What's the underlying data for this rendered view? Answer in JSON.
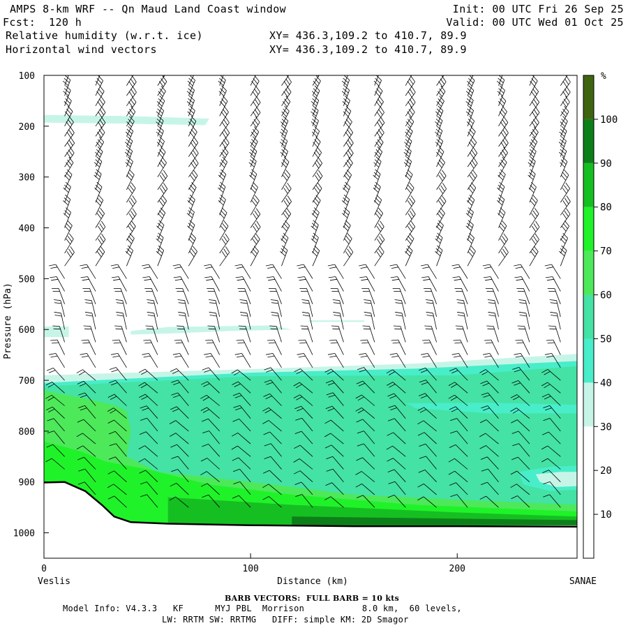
{
  "header": {
    "title": "AMPS 8-km WRF -- Qn Maud Land Coast window",
    "fcst": "Fcst:  120 h",
    "init": "Init: 00 UTC Fri 26 Sep 25",
    "valid": "Valid: 00 UTC Wed 01 Oct 25",
    "field1": "Relative humidity (w.r.t. ice)",
    "field1_xy": "XY= 436.3,109.2 to 410.7, 89.9",
    "field2": "Horizontal wind vectors",
    "field2_xy": "XY= 436.3,109.2 to 410.7, 89.9"
  },
  "footer": {
    "barb_note": "BARB VECTORS:  FULL BARB = 10 kts",
    "model_info_1": "Model Info: V4.3.3   KF      MYJ PBL  Morrison           8.0 km,  60 levels,",
    "model_info_2": "LW: RRTM SW: RRTMG   DIFF: simple KM: 2D Smagor"
  },
  "chart_data": {
    "type": "cross-section",
    "xlabel": "Distance (km)",
    "ylabel": "Pressure (hPa)",
    "x_start_label": "Veslis",
    "x_end_label": "SANAE",
    "x_ticks": [
      0,
      100,
      200
    ],
    "xlim": [
      0,
      258
    ],
    "y_ticks": [
      100,
      200,
      300,
      400,
      500,
      600,
      700,
      800,
      900,
      1000
    ],
    "ylim": [
      100,
      1050
    ],
    "y_scale": "linear-inverted",
    "colorbar": {
      "unit": "%",
      "ticks": [
        10,
        20,
        30,
        40,
        50,
        60,
        70,
        80,
        90,
        100
      ],
      "bins": [
        {
          "from": 0,
          "to": 30,
          "color": "#ffffff"
        },
        {
          "from": 30,
          "to": 40,
          "color": "#c6f5e8"
        },
        {
          "from": 40,
          "to": 50,
          "color": "#48edc9"
        },
        {
          "from": 50,
          "to": 60,
          "color": "#44e2a4"
        },
        {
          "from": 60,
          "to": 70,
          "color": "#4de95a"
        },
        {
          "from": 70,
          "to": 80,
          "color": "#20f22a"
        },
        {
          "from": 80,
          "to": 90,
          "color": "#15bf21"
        },
        {
          "from": 90,
          "to": 100,
          "color": "#0d7f19"
        },
        {
          "from": 100,
          "to": 110,
          "color": "#3f6410"
        }
      ]
    },
    "terrain_surface": [
      {
        "x": 0,
        "p": 901
      },
      {
        "x": 10,
        "p": 900
      },
      {
        "x": 20,
        "p": 918
      },
      {
        "x": 28,
        "p": 945
      },
      {
        "x": 34,
        "p": 968
      },
      {
        "x": 42,
        "p": 979
      },
      {
        "x": 60,
        "p": 982
      },
      {
        "x": 100,
        "p": 985
      },
      {
        "x": 150,
        "p": 987
      },
      {
        "x": 200,
        "p": 987
      },
      {
        "x": 258,
        "p": 988
      }
    ],
    "rh_regions": [
      {
        "rh": 30,
        "points": [
          [
            0,
            178
          ],
          [
            40,
            180
          ],
          [
            80,
            185
          ],
          [
            78,
            198
          ],
          [
            40,
            195
          ],
          [
            0,
            193
          ]
        ]
      },
      {
        "rh": 30,
        "points": [
          [
            0,
            594
          ],
          [
            12,
            594
          ],
          [
            12,
            615
          ],
          [
            0,
            615
          ]
        ]
      },
      {
        "rh": 30,
        "points": [
          [
            42,
            603
          ],
          [
            60,
            595
          ],
          [
            110,
            592
          ],
          [
            120,
            600
          ],
          [
            90,
            603
          ],
          [
            60,
            608
          ],
          [
            42,
            610
          ]
        ]
      },
      {
        "rh": 30,
        "points": [
          [
            128,
            582
          ],
          [
            155,
            582
          ],
          [
            155,
            585
          ],
          [
            128,
            585
          ]
        ]
      },
      {
        "rh": 30,
        "points": [
          [
            0,
            690
          ],
          [
            100,
            678
          ],
          [
            180,
            667
          ],
          [
            258,
            648
          ],
          [
            258,
            985
          ],
          [
            0,
            985
          ]
        ]
      },
      {
        "rh": 40,
        "points": [
          [
            0,
            705
          ],
          [
            100,
            685
          ],
          [
            180,
            677
          ],
          [
            258,
            662
          ],
          [
            258,
            985
          ],
          [
            0,
            985
          ]
        ]
      },
      {
        "rh": 50,
        "points": [
          [
            0,
            712
          ],
          [
            100,
            692
          ],
          [
            200,
            690
          ],
          [
            258,
            672
          ],
          [
            258,
            985
          ],
          [
            0,
            985
          ]
        ]
      },
      {
        "rh": 60,
        "points": [
          [
            0,
            720
          ],
          [
            25,
            740
          ],
          [
            35,
            750
          ],
          [
            40,
            760
          ],
          [
            42,
            800
          ],
          [
            40,
            850
          ],
          [
            55,
            880
          ],
          [
            100,
            900
          ],
          [
            150,
            925
          ],
          [
            200,
            935
          ],
          [
            258,
            945
          ],
          [
            258,
            985
          ],
          [
            0,
            985
          ]
        ]
      },
      {
        "rh": 70,
        "points": [
          [
            0,
            820
          ],
          [
            18,
            840
          ],
          [
            30,
            860
          ],
          [
            50,
            875
          ],
          [
            80,
            905
          ],
          [
            120,
            925
          ],
          [
            180,
            945
          ],
          [
            258,
            958
          ],
          [
            258,
            985
          ],
          [
            0,
            985
          ]
        ]
      },
      {
        "rh": 80,
        "points": [
          [
            60,
            930
          ],
          [
            120,
            945
          ],
          [
            200,
            960
          ],
          [
            258,
            968
          ],
          [
            258,
            985
          ],
          [
            60,
            985
          ]
        ]
      },
      {
        "rh": 90,
        "points": [
          [
            120,
            968
          ],
          [
            200,
            972
          ],
          [
            258,
            975
          ],
          [
            258,
            985
          ],
          [
            120,
            985
          ]
        ]
      },
      {
        "rh": 50,
        "points": [
          [
            160,
            735
          ],
          [
            220,
            735
          ],
          [
            258,
            740
          ],
          [
            258,
            775
          ],
          [
            220,
            775
          ],
          [
            170,
            755
          ]
        ]
      },
      {
        "rh": 40,
        "points": [
          [
            175,
            745
          ],
          [
            215,
            744
          ],
          [
            258,
            748
          ],
          [
            258,
            765
          ],
          [
            215,
            765
          ],
          [
            180,
            755
          ]
        ]
      },
      {
        "rh": 40,
        "points": [
          [
            230,
            880
          ],
          [
            245,
            870
          ],
          [
            258,
            868
          ],
          [
            258,
            915
          ],
          [
            245,
            918
          ],
          [
            232,
            905
          ]
        ]
      },
      {
        "rh": 30,
        "points": [
          [
            238,
            885
          ],
          [
            250,
            880
          ],
          [
            258,
            880
          ],
          [
            258,
            908
          ],
          [
            248,
            910
          ],
          [
            240,
            900
          ]
        ]
      }
    ],
    "barb_columns_x": [
      10,
      25,
      40,
      55,
      70,
      85,
      100,
      115,
      130,
      145,
      160,
      175,
      190,
      205,
      220,
      235,
      250
    ],
    "barb_levels_hpa": [
      120,
      140,
      160,
      180,
      200,
      220,
      240,
      260,
      280,
      300,
      325,
      350,
      375,
      400,
      425,
      450,
      475,
      500,
      525,
      550,
      575,
      600,
      625,
      650,
      675,
      700,
      725,
      750,
      775,
      800,
      825,
      850,
      875,
      900,
      925,
      950
    ]
  }
}
